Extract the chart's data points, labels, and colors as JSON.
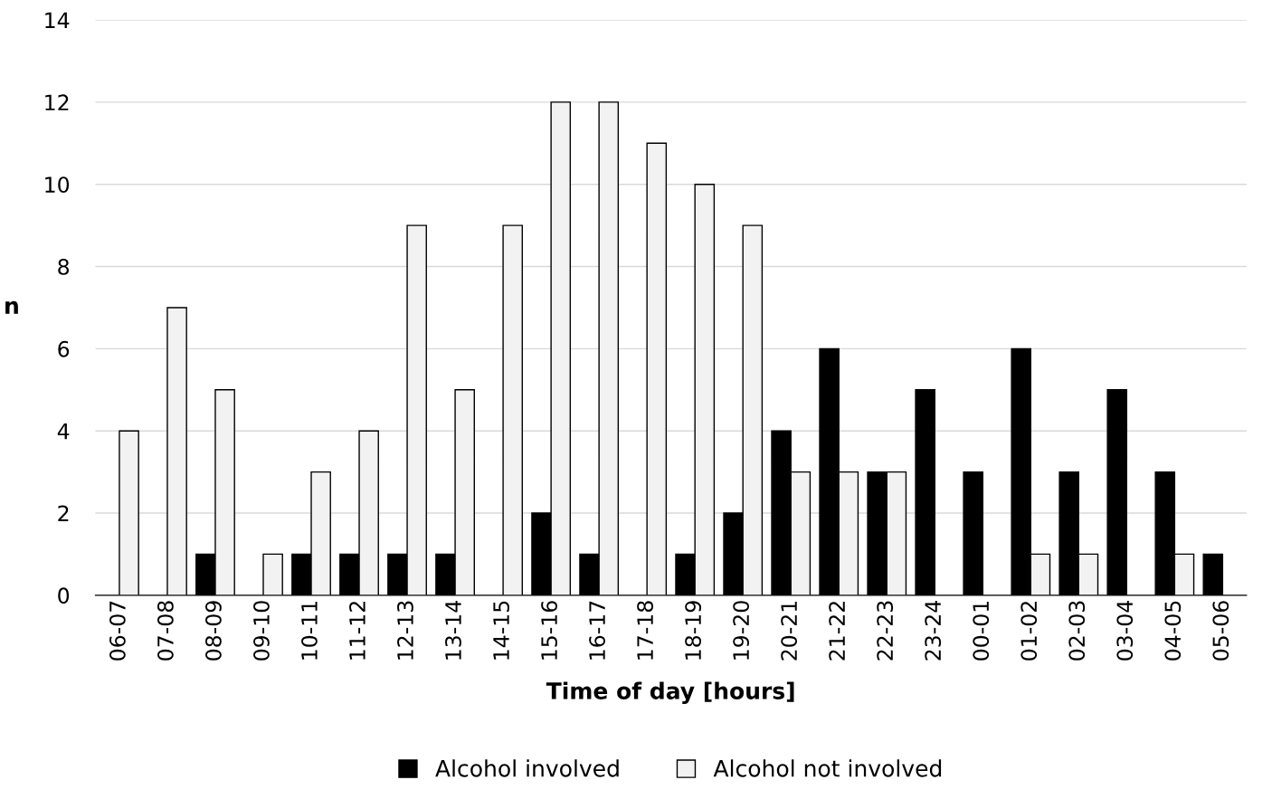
{
  "chart_data": {
    "type": "bar",
    "xlabel": "Time of day [hours]",
    "ylabel": "n",
    "categories": [
      "06-07",
      "07-08",
      "08-09",
      "09-10",
      "10-11",
      "11-12",
      "12-13",
      "13-14",
      "14-15",
      "15-16",
      "16-17",
      "17-18",
      "18-19",
      "19-20",
      "20-21",
      "21-22",
      "22-23",
      "23-24",
      "00-01",
      "01-02",
      "02-03",
      "03-04",
      "04-05",
      "05-06"
    ],
    "series": [
      {
        "name": "Alcohol involved",
        "color": "#000000",
        "values": [
          0,
          0,
          1,
          0,
          1,
          1,
          1,
          1,
          0,
          2,
          1,
          0,
          1,
          2,
          4,
          6,
          3,
          5,
          3,
          6,
          3,
          5,
          3,
          1
        ]
      },
      {
        "name": "Alcohol not involved",
        "color": "#f2f2f2",
        "values": [
          4,
          7,
          5,
          1,
          3,
          4,
          9,
          5,
          9,
          12,
          12,
          11,
          10,
          9,
          3,
          3,
          3,
          0,
          0,
          1,
          1,
          0,
          1,
          0
        ]
      }
    ],
    "ylim": [
      0,
      14
    ],
    "yticks": [
      0,
      2,
      4,
      6,
      8,
      10,
      12,
      14
    ],
    "grid": "y",
    "legend": "bottom"
  }
}
